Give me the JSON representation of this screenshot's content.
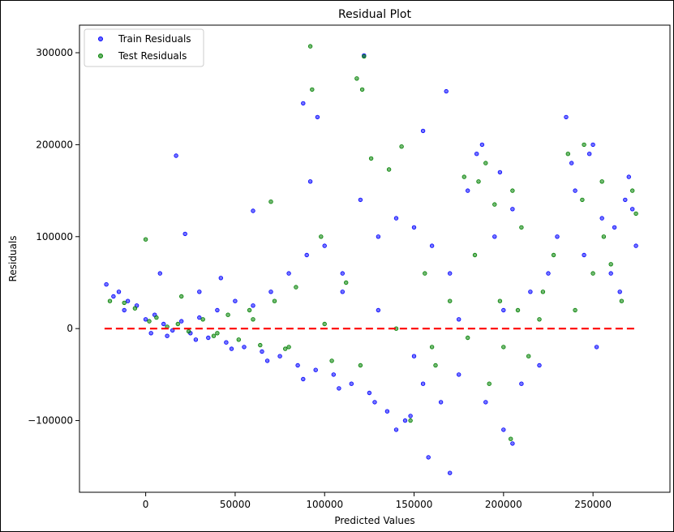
{
  "chart_data": {
    "type": "scatter",
    "title": "Residual Plot",
    "xlabel": "Predicted Values",
    "ylabel": "Residuals",
    "xlim": [
      -37000,
      293000
    ],
    "ylim": [
      -178000,
      330000
    ],
    "xticks": [
      0,
      50000,
      100000,
      150000,
      200000,
      250000
    ],
    "yticks": [
      -100000,
      0,
      100000,
      200000,
      300000
    ],
    "legend_position": "top-left",
    "zero_line": {
      "y": 0,
      "x_range": [
        -23000,
        275000
      ],
      "color": "#ff0000",
      "style": "dashed"
    },
    "series": [
      {
        "name": "Train Residuals",
        "color": "#0000ff",
        "points": [
          [
            -22000,
            48000
          ],
          [
            -18000,
            35000
          ],
          [
            -15000,
            40000
          ],
          [
            -10000,
            30000
          ],
          [
            -5000,
            25000
          ],
          [
            0,
            10000
          ],
          [
            5000,
            15000
          ],
          [
            10000,
            5000
          ],
          [
            15000,
            -2000
          ],
          [
            20000,
            8000
          ],
          [
            25000,
            -5000
          ],
          [
            30000,
            12000
          ],
          [
            35000,
            -10000
          ],
          [
            40000,
            20000
          ],
          [
            45000,
            -15000
          ],
          [
            50000,
            30000
          ],
          [
            55000,
            -20000
          ],
          [
            60000,
            25000
          ],
          [
            65000,
            -25000
          ],
          [
            70000,
            40000
          ],
          [
            75000,
            -30000
          ],
          [
            80000,
            60000
          ],
          [
            85000,
            -40000
          ],
          [
            90000,
            80000
          ],
          [
            95000,
            -45000
          ],
          [
            100000,
            90000
          ],
          [
            105000,
            -50000
          ],
          [
            110000,
            60000
          ],
          [
            115000,
            -60000
          ],
          [
            120000,
            140000
          ],
          [
            125000,
            -70000
          ],
          [
            130000,
            100000
          ],
          [
            135000,
            -90000
          ],
          [
            140000,
            120000
          ],
          [
            145000,
            -100000
          ],
          [
            150000,
            110000
          ],
          [
            155000,
            -60000
          ],
          [
            160000,
            90000
          ],
          [
            165000,
            -80000
          ],
          [
            170000,
            60000
          ],
          [
            175000,
            -50000
          ],
          [
            180000,
            150000
          ],
          [
            185000,
            190000
          ],
          [
            190000,
            -80000
          ],
          [
            195000,
            100000
          ],
          [
            200000,
            -110000
          ],
          [
            205000,
            130000
          ],
          [
            210000,
            -60000
          ],
          [
            215000,
            40000
          ],
          [
            220000,
            -40000
          ],
          [
            225000,
            60000
          ],
          [
            230000,
            100000
          ],
          [
            235000,
            230000
          ],
          [
            240000,
            150000
          ],
          [
            245000,
            80000
          ],
          [
            250000,
            200000
          ],
          [
            255000,
            120000
          ],
          [
            260000,
            60000
          ],
          [
            265000,
            40000
          ],
          [
            270000,
            165000
          ],
          [
            272000,
            130000
          ],
          [
            274000,
            90000
          ],
          [
            17000,
            188000
          ],
          [
            92000,
            160000
          ],
          [
            88000,
            245000
          ],
          [
            96000,
            230000
          ],
          [
            122000,
            297000
          ],
          [
            168000,
            258000
          ],
          [
            155000,
            215000
          ],
          [
            170000,
            -157000
          ],
          [
            158000,
            -140000
          ],
          [
            140000,
            -110000
          ],
          [
            205000,
            -125000
          ],
          [
            22000,
            103000
          ],
          [
            60000,
            128000
          ],
          [
            110000,
            40000
          ],
          [
            130000,
            20000
          ],
          [
            150000,
            -30000
          ],
          [
            175000,
            10000
          ],
          [
            200000,
            20000
          ],
          [
            30000,
            40000
          ],
          [
            42000,
            55000
          ],
          [
            8000,
            60000
          ],
          [
            -12000,
            20000
          ],
          [
            3000,
            -5000
          ],
          [
            12000,
            -8000
          ],
          [
            28000,
            -12000
          ],
          [
            48000,
            -22000
          ],
          [
            68000,
            -35000
          ],
          [
            88000,
            -55000
          ],
          [
            108000,
            -65000
          ],
          [
            128000,
            -80000
          ],
          [
            148000,
            -95000
          ],
          [
            188000,
            200000
          ],
          [
            198000,
            170000
          ],
          [
            238000,
            180000
          ],
          [
            248000,
            190000
          ],
          [
            262000,
            110000
          ],
          [
            268000,
            140000
          ],
          [
            252000,
            -20000
          ]
        ]
      },
      {
        "name": "Test Residuals",
        "color": "#008000",
        "points": [
          [
            -20000,
            30000
          ],
          [
            -12000,
            28000
          ],
          [
            -6000,
            22000
          ],
          [
            2000,
            8000
          ],
          [
            6000,
            12000
          ],
          [
            12000,
            2000
          ],
          [
            18000,
            5000
          ],
          [
            24000,
            -3000
          ],
          [
            32000,
            10000
          ],
          [
            38000,
            -8000
          ],
          [
            46000,
            15000
          ],
          [
            52000,
            -12000
          ],
          [
            58000,
            20000
          ],
          [
            64000,
            -18000
          ],
          [
            72000,
            30000
          ],
          [
            78000,
            -22000
          ],
          [
            84000,
            45000
          ],
          [
            92000,
            307000
          ],
          [
            93000,
            260000
          ],
          [
            98000,
            100000
          ],
          [
            104000,
            -35000
          ],
          [
            112000,
            50000
          ],
          [
            118000,
            272000
          ],
          [
            121000,
            260000
          ],
          [
            122000,
            296000
          ],
          [
            126000,
            185000
          ],
          [
            136000,
            173000
          ],
          [
            143000,
            198000
          ],
          [
            148000,
            -100000
          ],
          [
            156000,
            60000
          ],
          [
            162000,
            -40000
          ],
          [
            170000,
            30000
          ],
          [
            178000,
            165000
          ],
          [
            184000,
            80000
          ],
          [
            186000,
            160000
          ],
          [
            192000,
            -60000
          ],
          [
            198000,
            30000
          ],
          [
            204000,
            -120000
          ],
          [
            208000,
            20000
          ],
          [
            214000,
            -30000
          ],
          [
            222000,
            40000
          ],
          [
            228000,
            80000
          ],
          [
            236000,
            190000
          ],
          [
            244000,
            140000
          ],
          [
            250000,
            60000
          ],
          [
            256000,
            100000
          ],
          [
            260000,
            70000
          ],
          [
            266000,
            30000
          ],
          [
            272000,
            150000
          ],
          [
            274000,
            125000
          ],
          [
            0,
            97000
          ],
          [
            70000,
            138000
          ],
          [
            20000,
            35000
          ],
          [
            40000,
            -5000
          ],
          [
            60000,
            10000
          ],
          [
            80000,
            -20000
          ],
          [
            100000,
            5000
          ],
          [
            120000,
            -40000
          ],
          [
            140000,
            0
          ],
          [
            160000,
            -20000
          ],
          [
            180000,
            -10000
          ],
          [
            200000,
            -20000
          ],
          [
            220000,
            10000
          ],
          [
            240000,
            20000
          ],
          [
            195000,
            135000
          ],
          [
            205000,
            150000
          ],
          [
            190000,
            180000
          ],
          [
            210000,
            110000
          ],
          [
            245000,
            200000
          ],
          [
            255000,
            160000
          ]
        ]
      }
    ]
  }
}
